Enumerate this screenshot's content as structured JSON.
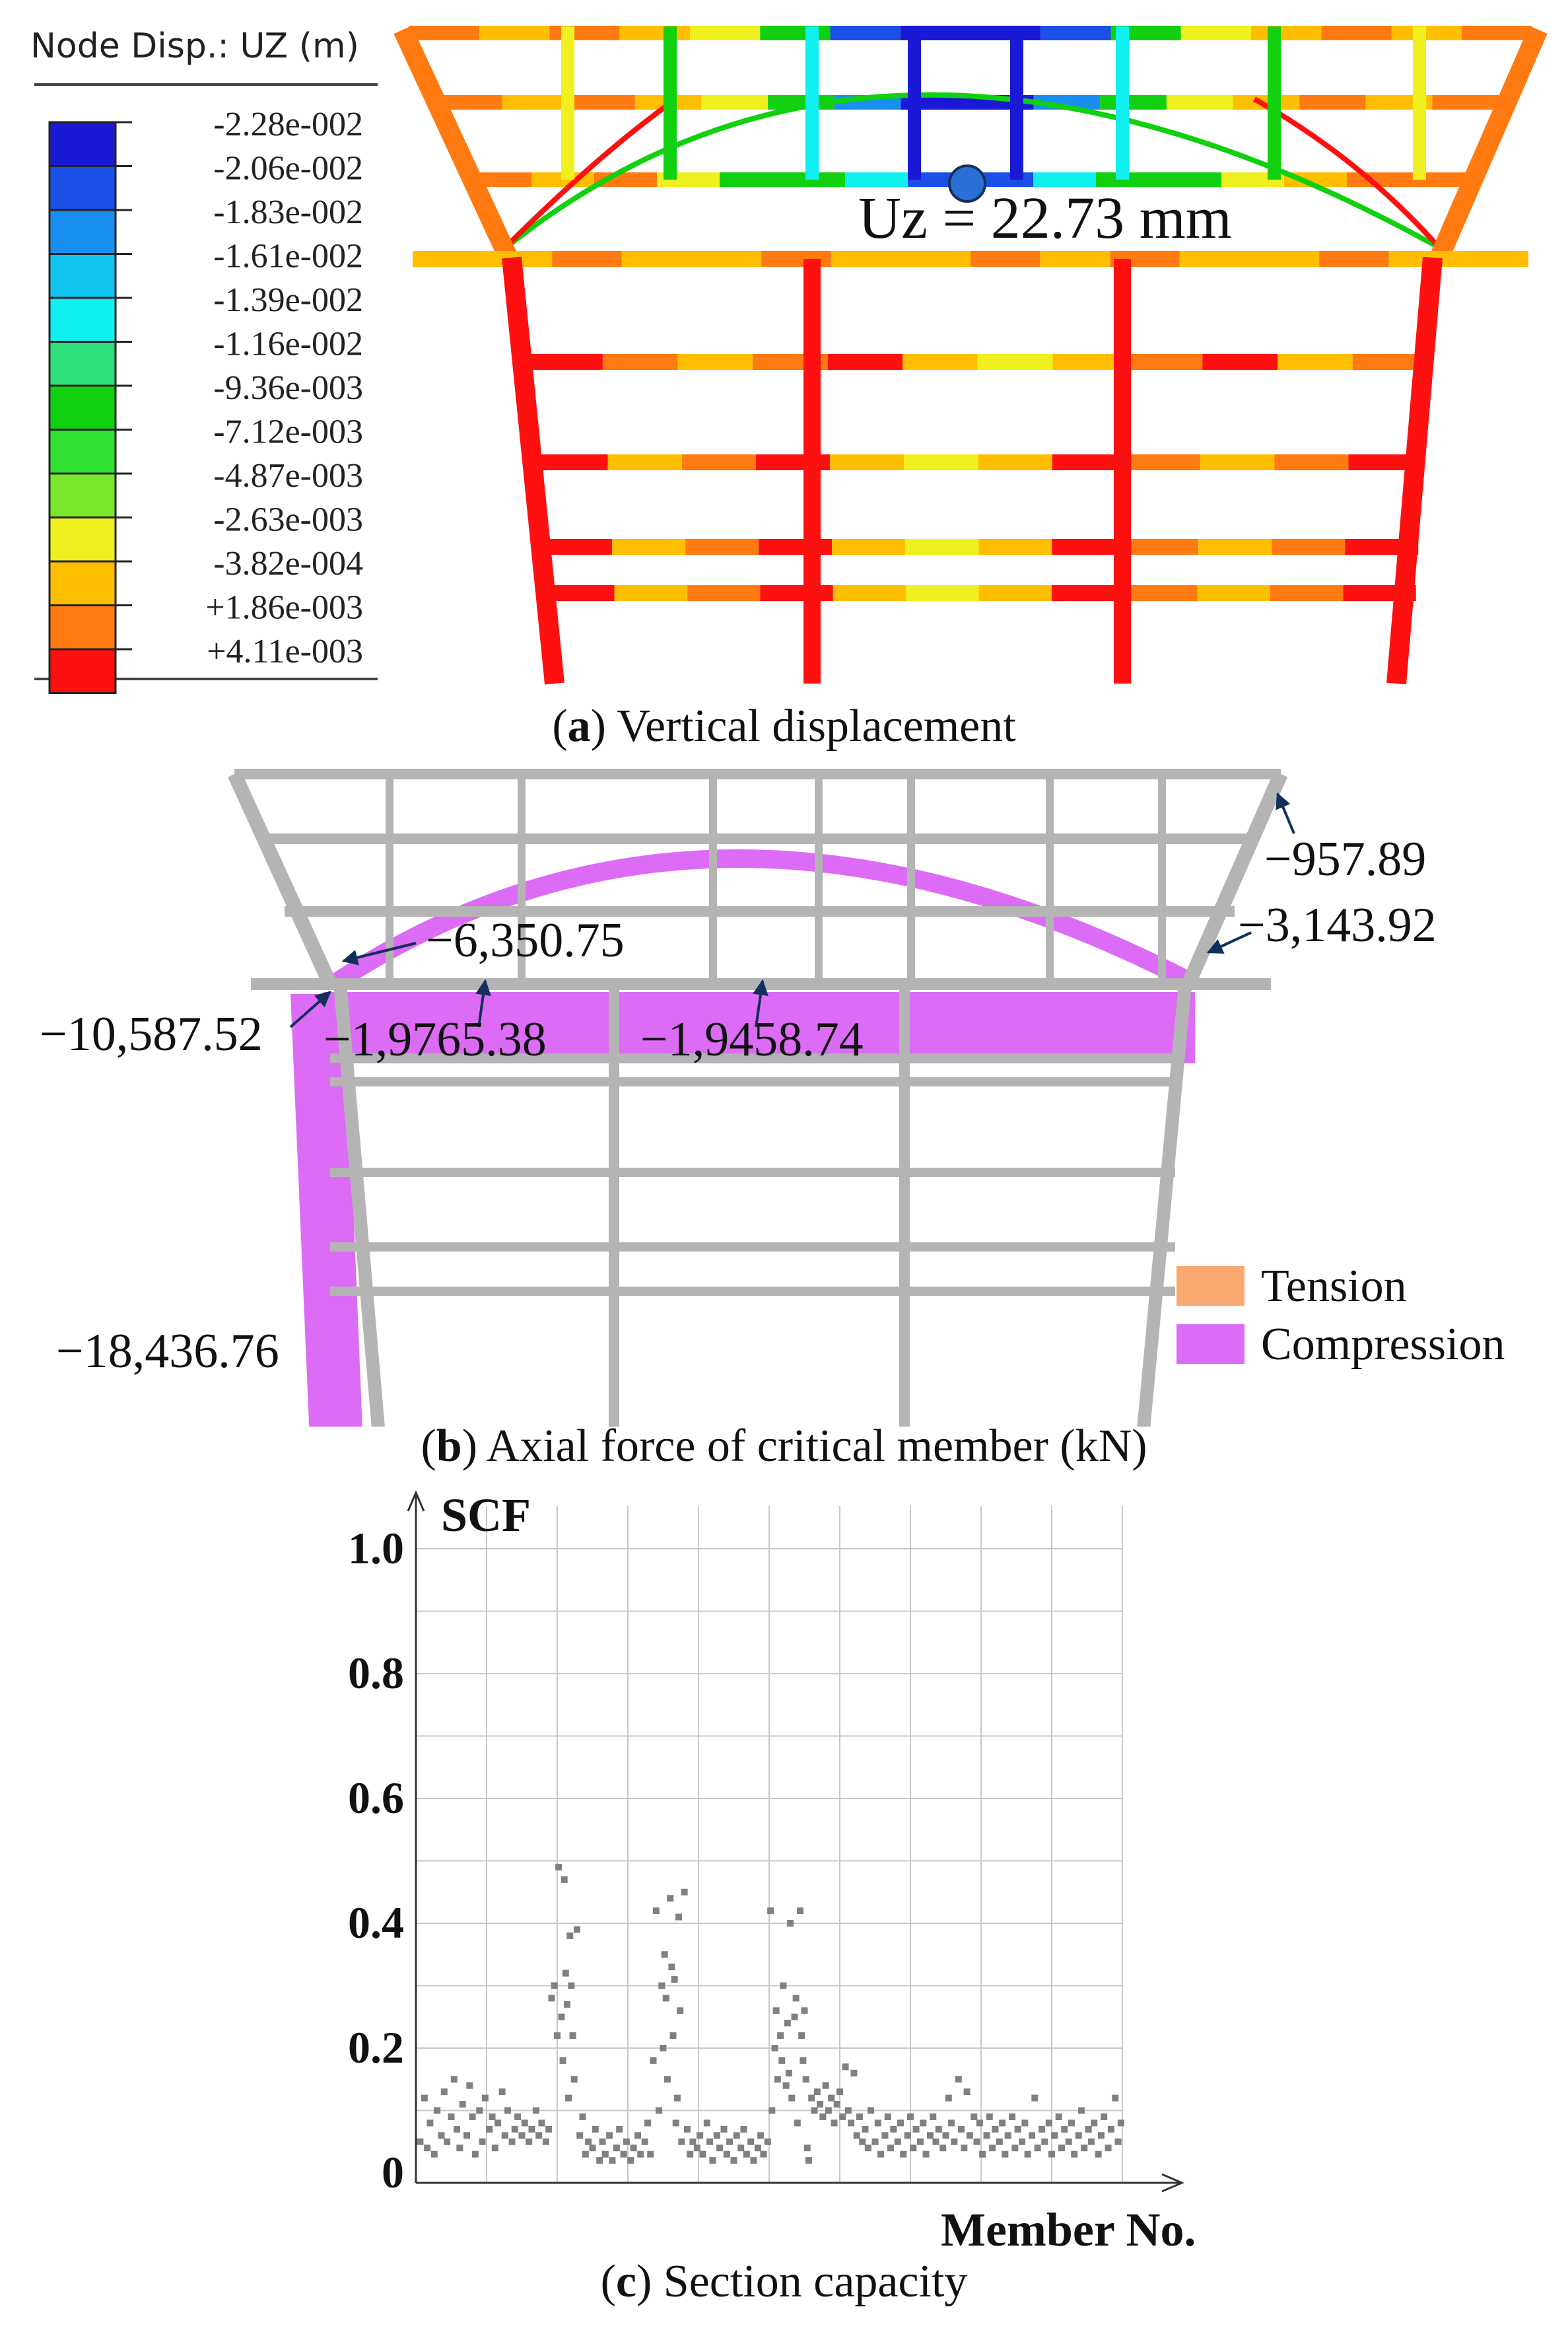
{
  "panel_a": {
    "legend_title": "Node Disp.: UZ (m)",
    "legend": [
      {
        "label": "-2.28e-002",
        "color": "#1a1ad6"
      },
      {
        "label": "-2.06e-002",
        "color": "#1a4fe8"
      },
      {
        "label": "-1.83e-002",
        "color": "#1a8ff2"
      },
      {
        "label": "-1.61e-002",
        "color": "#12c4f0"
      },
      {
        "label": "-1.39e-002",
        "color": "#10f0f0"
      },
      {
        "label": "-1.16e-002",
        "color": "#2ee07a"
      },
      {
        "label": "-9.36e-003",
        "color": "#10d010"
      },
      {
        "label": "-7.12e-003",
        "color": "#30e030"
      },
      {
        "label": "-4.87e-003",
        "color": "#7ae82a"
      },
      {
        "label": "-2.63e-003",
        "color": "#f0f020"
      },
      {
        "label": "-3.82e-004",
        "color": "#ffbf00"
      },
      {
        "label": "+1.86e-003",
        "color": "#ff7a10"
      },
      {
        "label": "+4.11e-003",
        "color": "#ff1010"
      }
    ],
    "annotation": "Uz = 22.73  mm",
    "caption_letter": "a",
    "caption_text": " Vertical displacement"
  },
  "panel_b": {
    "labels": {
      "l957": "−957.89",
      "l3143": "−3,143.92",
      "l6350": "−6,350.75",
      "l10587": "−10,587.52",
      "l19765": "−1,9765.38",
      "l19458": "−1,9458.74",
      "l18436": "−18,436.76"
    },
    "legend": [
      {
        "label": "Tension",
        "color": "#f9a870"
      },
      {
        "label": "Compression",
        "color": "#dc6cf5"
      }
    ],
    "caption_letter": "b",
    "caption_text": " Axial force of critical member (kN)"
  },
  "chart_data": {
    "type": "scatter",
    "title": "",
    "xlabel": "Member No.",
    "ylabel": "SCF",
    "ylim": [
      0,
      1.0
    ],
    "yticks": [
      "0",
      "0.2",
      "0.4",
      "0.6",
      "0.8",
      "1.0"
    ],
    "grid": true,
    "x_range": [
      0,
      500
    ],
    "series": [
      {
        "points": [
          [
            3,
            0.05
          ],
          [
            6,
            0.12
          ],
          [
            8,
            0.04
          ],
          [
            10,
            0.08
          ],
          [
            13,
            0.03
          ],
          [
            15,
            0.1
          ],
          [
            18,
            0.06
          ],
          [
            20,
            0.13
          ],
          [
            22,
            0.05
          ],
          [
            25,
            0.09
          ],
          [
            27,
            0.15
          ],
          [
            29,
            0.07
          ],
          [
            31,
            0.04
          ],
          [
            33,
            0.11
          ],
          [
            36,
            0.06
          ],
          [
            38,
            0.14
          ],
          [
            40,
            0.09
          ],
          [
            42,
            0.03
          ],
          [
            45,
            0.1
          ],
          [
            47,
            0.05
          ],
          [
            49,
            0.12
          ],
          [
            52,
            0.07
          ],
          [
            54,
            0.09
          ],
          [
            56,
            0.04
          ],
          [
            58,
            0.08
          ],
          [
            61,
            0.13
          ],
          [
            63,
            0.06
          ],
          [
            65,
            0.1
          ],
          [
            68,
            0.05
          ],
          [
            70,
            0.07
          ],
          [
            72,
            0.09
          ],
          [
            75,
            0.06
          ],
          [
            77,
            0.08
          ],
          [
            80,
            0.05
          ],
          [
            82,
            0.07
          ],
          [
            85,
            0.1
          ],
          [
            87,
            0.06
          ],
          [
            89,
            0.08
          ],
          [
            92,
            0.05
          ],
          [
            94,
            0.07
          ],
          [
            96,
            0.28
          ],
          [
            98,
            0.3
          ],
          [
            100,
            0.22
          ],
          [
            101,
            0.49
          ],
          [
            103,
            0.25
          ],
          [
            104,
            0.18
          ],
          [
            105,
            0.47
          ],
          [
            106,
            0.32
          ],
          [
            107,
            0.27
          ],
          [
            108,
            0.12
          ],
          [
            109,
            0.38
          ],
          [
            110,
            0.3
          ],
          [
            111,
            0.22
          ],
          [
            112,
            0.15
          ],
          [
            114,
            0.39
          ],
          [
            116,
            0.06
          ],
          [
            118,
            0.09
          ],
          [
            120,
            0.03
          ],
          [
            122,
            0.05
          ],
          [
            125,
            0.04
          ],
          [
            127,
            0.07
          ],
          [
            130,
            0.02
          ],
          [
            132,
            0.05
          ],
          [
            134,
            0.03
          ],
          [
            137,
            0.06
          ],
          [
            139,
            0.02
          ],
          [
            142,
            0.04
          ],
          [
            144,
            0.07
          ],
          [
            147,
            0.03
          ],
          [
            149,
            0.05
          ],
          [
            152,
            0.02
          ],
          [
            154,
            0.04
          ],
          [
            157,
            0.06
          ],
          [
            159,
            0.03
          ],
          [
            162,
            0.05
          ],
          [
            164,
            0.08
          ],
          [
            166,
            0.03
          ],
          [
            168,
            0.18
          ],
          [
            170,
            0.42
          ],
          [
            172,
            0.1
          ],
          [
            174,
            0.3
          ],
          [
            175,
            0.2
          ],
          [
            176,
            0.35
          ],
          [
            177,
            0.28
          ],
          [
            178,
            0.15
          ],
          [
            180,
            0.44
          ],
          [
            181,
            0.33
          ],
          [
            182,
            0.22
          ],
          [
            183,
            0.31
          ],
          [
            184,
            0.08
          ],
          [
            185,
            0.12
          ],
          [
            186,
            0.41
          ],
          [
            187,
            0.26
          ],
          [
            188,
            0.05
          ],
          [
            190,
            0.45
          ],
          [
            192,
            0.07
          ],
          [
            194,
            0.03
          ],
          [
            196,
            0.05
          ],
          [
            199,
            0.04
          ],
          [
            201,
            0.06
          ],
          [
            203,
            0.03
          ],
          [
            206,
            0.08
          ],
          [
            208,
            0.05
          ],
          [
            210,
            0.02
          ],
          [
            213,
            0.06
          ],
          [
            215,
            0.04
          ],
          [
            218,
            0.07
          ],
          [
            220,
            0.03
          ],
          [
            222,
            0.05
          ],
          [
            225,
            0.02
          ],
          [
            227,
            0.06
          ],
          [
            230,
            0.04
          ],
          [
            232,
            0.07
          ],
          [
            234,
            0.03
          ],
          [
            237,
            0.05
          ],
          [
            239,
            0.02
          ],
          [
            242,
            0.04
          ],
          [
            244,
            0.06
          ],
          [
            246,
            0.03
          ],
          [
            249,
            0.05
          ],
          [
            251,
            0.42
          ],
          [
            252,
            0.1
          ],
          [
            254,
            0.2
          ],
          [
            255,
            0.26
          ],
          [
            256,
            0.15
          ],
          [
            258,
            0.22
          ],
          [
            259,
            0.18
          ],
          [
            260,
            0.3
          ],
          [
            262,
            0.14
          ],
          [
            263,
            0.24
          ],
          [
            264,
            0.16
          ],
          [
            265,
            0.4
          ],
          [
            266,
            0.12
          ],
          [
            268,
            0.25
          ],
          [
            269,
            0.28
          ],
          [
            270,
            0.08
          ],
          [
            272,
            0.42
          ],
          [
            273,
            0.22
          ],
          [
            274,
            0.18
          ],
          [
            275,
            0.26
          ],
          [
            276,
            0.15
          ],
          [
            277,
            0.04
          ],
          [
            278,
            0.02
          ],
          [
            280,
            0.12
          ],
          [
            282,
            0.1
          ],
          [
            284,
            0.13
          ],
          [
            286,
            0.11
          ],
          [
            288,
            0.09
          ],
          [
            290,
            0.14
          ],
          [
            292,
            0.1
          ],
          [
            294,
            0.12
          ],
          [
            296,
            0.08
          ],
          [
            298,
            0.11
          ],
          [
            300,
            0.13
          ],
          [
            302,
            0.09
          ],
          [
            304,
            0.17
          ],
          [
            306,
            0.1
          ],
          [
            308,
            0.08
          ],
          [
            310,
            0.16
          ],
          [
            312,
            0.06
          ],
          [
            314,
            0.09
          ],
          [
            316,
            0.05
          ],
          [
            318,
            0.07
          ],
          [
            320,
            0.04
          ],
          [
            322,
            0.1
          ],
          [
            325,
            0.05
          ],
          [
            327,
            0.08
          ],
          [
            329,
            0.03
          ],
          [
            332,
            0.06
          ],
          [
            334,
            0.09
          ],
          [
            336,
            0.04
          ],
          [
            338,
            0.07
          ],
          [
            341,
            0.05
          ],
          [
            343,
            0.08
          ],
          [
            345,
            0.03
          ],
          [
            348,
            0.06
          ],
          [
            350,
            0.09
          ],
          [
            352,
            0.04
          ],
          [
            354,
            0.07
          ],
          [
            357,
            0.05
          ],
          [
            359,
            0.08
          ],
          [
            361,
            0.03
          ],
          [
            364,
            0.06
          ],
          [
            366,
            0.09
          ],
          [
            368,
            0.05
          ],
          [
            370,
            0.07
          ],
          [
            373,
            0.04
          ],
          [
            375,
            0.06
          ],
          [
            377,
            0.12
          ],
          [
            379,
            0.08
          ],
          [
            381,
            0.05
          ],
          [
            384,
            0.15
          ],
          [
            386,
            0.07
          ],
          [
            388,
            0.04
          ],
          [
            390,
            0.13
          ],
          [
            392,
            0.06
          ],
          [
            395,
            0.09
          ],
          [
            397,
            0.05
          ],
          [
            399,
            0.08
          ],
          [
            401,
            0.03
          ],
          [
            404,
            0.06
          ],
          [
            406,
            0.09
          ],
          [
            408,
            0.04
          ],
          [
            410,
            0.07
          ],
          [
            413,
            0.05
          ],
          [
            415,
            0.08
          ],
          [
            417,
            0.03
          ],
          [
            419,
            0.06
          ],
          [
            422,
            0.09
          ],
          [
            424,
            0.04
          ],
          [
            426,
            0.07
          ],
          [
            429,
            0.05
          ],
          [
            431,
            0.08
          ],
          [
            433,
            0.03
          ],
          [
            436,
            0.06
          ],
          [
            438,
            0.12
          ],
          [
            440,
            0.04
          ],
          [
            443,
            0.07
          ],
          [
            445,
            0.05
          ],
          [
            448,
            0.08
          ],
          [
            450,
            0.03
          ],
          [
            452,
            0.06
          ],
          [
            455,
            0.09
          ],
          [
            457,
            0.04
          ],
          [
            459,
            0.07
          ],
          [
            462,
            0.05
          ],
          [
            464,
            0.08
          ],
          [
            466,
            0.03
          ],
          [
            469,
            0.06
          ],
          [
            471,
            0.1
          ],
          [
            473,
            0.04
          ],
          [
            476,
            0.07
          ],
          [
            478,
            0.05
          ],
          [
            480,
            0.08
          ],
          [
            483,
            0.03
          ],
          [
            485,
            0.06
          ],
          [
            487,
            0.09
          ],
          [
            490,
            0.04
          ],
          [
            492,
            0.07
          ],
          [
            495,
            0.12
          ],
          [
            497,
            0.05
          ],
          [
            499,
            0.08
          ]
        ],
        "color": "#808080"
      }
    ],
    "caption_letter": "c",
    "caption_text": " Section capacity"
  }
}
